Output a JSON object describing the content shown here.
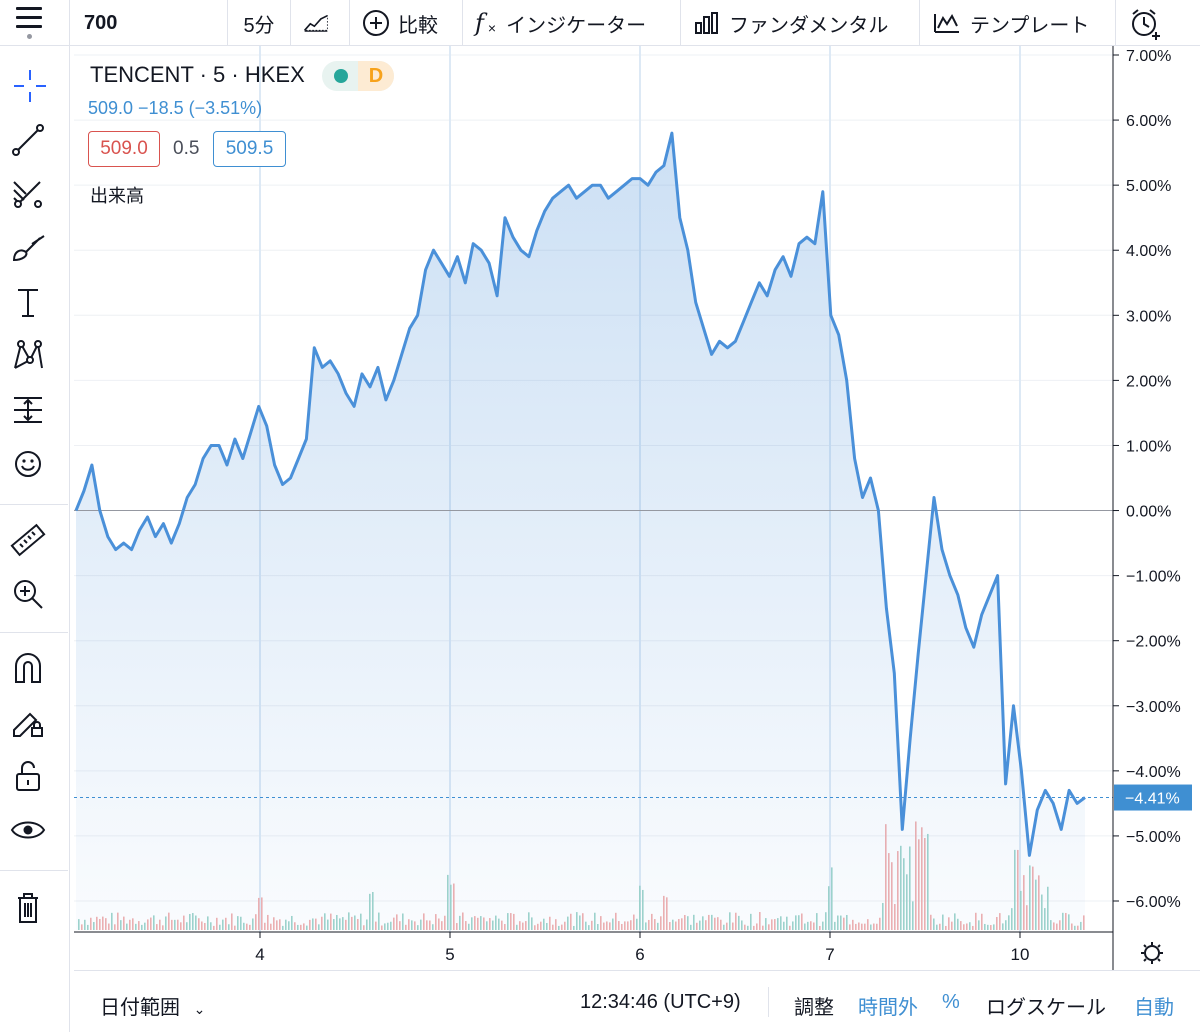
{
  "toolbar": {
    "symbol": "700",
    "interval": "5分",
    "compare": "比較",
    "indicators": "インジケーター",
    "fundamentals": "ファンダメンタル",
    "templates": "テンプレート"
  },
  "legend": {
    "symbol": "TENCENT · 5 · HKEX",
    "badge": "D",
    "change": "509.0  −18.5 (−3.51%)",
    "bid": "509.0",
    "spread": "0.5",
    "ask": "509.5",
    "volume_label": "出来高"
  },
  "bottom": {
    "date_range": "日付範囲",
    "clock": "12:34:46 (UTC+9)",
    "adjust": "調整",
    "extended": "時間外",
    "percent": "%",
    "log": "ログスケール",
    "auto": "自動"
  },
  "colors": {
    "line": "#4a90d9",
    "up_volume": "#9fd4cc",
    "down_volume": "#f0b0b0",
    "axis_label": "#3f8fd2"
  },
  "chart_data": {
    "type": "area",
    "x_ticks": [
      "4",
      "5",
      "6",
      "7",
      "10"
    ],
    "y_ticks": [
      "7.00%",
      "6.00%",
      "5.00%",
      "4.00%",
      "3.00%",
      "2.00%",
      "1.00%",
      "0.00%",
      "−1.00%",
      "−2.00%",
      "−3.00%",
      "−4.00%",
      "−5.00%",
      "−6.00%"
    ],
    "ylim": [
      -6.3,
      7.0
    ],
    "last_value_label": "−4.41%",
    "last_value": -4.41,
    "series": [
      {
        "values": [
          0.0,
          0.3,
          0.7,
          0.0,
          -0.4,
          -0.6,
          -0.5,
          -0.6,
          -0.3,
          -0.1,
          -0.4,
          -0.2,
          -0.5,
          -0.2,
          0.2,
          0.4,
          0.8,
          1.0,
          1.0,
          0.7,
          1.1,
          0.8,
          1.2,
          1.6,
          1.3,
          0.7,
          0.4,
          0.5,
          0.8,
          1.1,
          2.5,
          2.2,
          2.3,
          2.1,
          1.8,
          1.6,
          2.1,
          1.9,
          2.2,
          1.7,
          2.0,
          2.4,
          2.8,
          3.0,
          3.7,
          4.0,
          3.8,
          3.6,
          3.9,
          3.5,
          4.1,
          4.0,
          3.8,
          3.3,
          4.5,
          4.2,
          4.0,
          3.9,
          4.3,
          4.6,
          4.8,
          4.9,
          5.0,
          4.8,
          4.9,
          5.0,
          5.0,
          4.8,
          4.9,
          5.0,
          5.1,
          5.1,
          5.0,
          5.2,
          5.3,
          5.8,
          4.5,
          4.0,
          3.2,
          2.8,
          2.4,
          2.6,
          2.5,
          2.6,
          2.9,
          3.2,
          3.5,
          3.3,
          3.7,
          3.9,
          3.6,
          4.1,
          4.2,
          4.1,
          4.9,
          3.0,
          2.7,
          2.0,
          0.8,
          0.2,
          0.5,
          0.0,
          -1.5,
          -2.5,
          -4.9,
          -3.5,
          -2.2,
          -1.0,
          0.2,
          -0.6,
          -1.0,
          -1.3,
          -1.8,
          -2.1,
          -1.6,
          -1.3,
          -1.0,
          -4.2,
          -3.0,
          -4.0,
          -5.3,
          -4.6,
          -4.3,
          -4.5,
          -4.9,
          -4.3,
          -4.5,
          -4.41
        ]
      }
    ]
  }
}
